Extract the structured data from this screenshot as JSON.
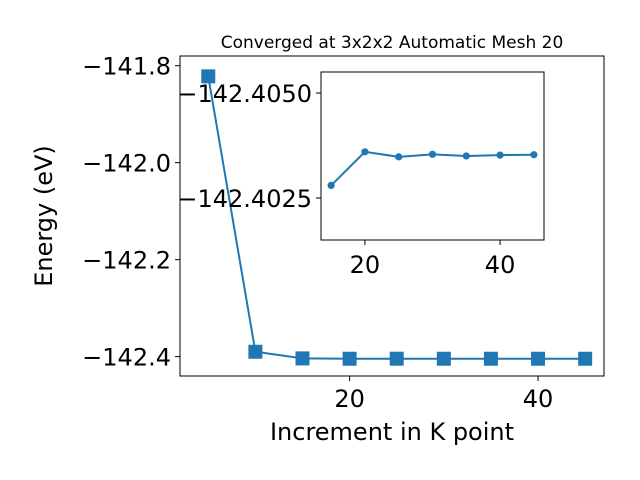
{
  "chart_data": [
    {
      "type": "line",
      "title": "Converged at 3x2x2 Automatic Mesh 20",
      "xlabel": "Increment in K point",
      "ylabel": "Energy (eV)",
      "xlim": [
        2,
        47
      ],
      "ylim": [
        -142.44,
        -141.78
      ],
      "xticks": [
        20,
        40
      ],
      "xtick_labels": [
        "20",
        "40"
      ],
      "yticks": [
        -141.8,
        -142.0,
        -142.2,
        -142.4
      ],
      "ytick_labels": [
        "−141.8",
        "−142.0",
        "−142.2",
        "−142.4"
      ],
      "grid": false,
      "marker": "square",
      "color": "#1f77b4",
      "series": [
        {
          "x": [
            5,
            10,
            15,
            20,
            25,
            30,
            35,
            40,
            45
          ],
          "y": [
            -141.822,
            -142.39,
            -142.4037,
            -142.4044,
            -142.4043,
            -142.4044,
            -142.4044,
            -142.4044,
            -142.4044
          ]
        }
      ]
    },
    {
      "type": "line",
      "title": "",
      "xlabel": "",
      "ylabel": "",
      "xlim": [
        13.5,
        46.5
      ],
      "ylim": [
        -142.4015,
        -142.4055
      ],
      "xticks": [
        20,
        40
      ],
      "xtick_labels": [
        "20",
        "40"
      ],
      "yticks": [
        -142.405,
        -142.4025
      ],
      "ytick_labels": [
        "−142.4050",
        "−142.4025"
      ],
      "grid": false,
      "marker": "circle",
      "color": "#1f77b4",
      "series": [
        {
          "x": [
            15,
            20,
            25,
            30,
            35,
            40,
            45
          ],
          "y": [
            -142.4028,
            -142.4036,
            -142.40348,
            -142.40354,
            -142.4035,
            -142.40352,
            -142.40353
          ]
        }
      ]
    }
  ]
}
